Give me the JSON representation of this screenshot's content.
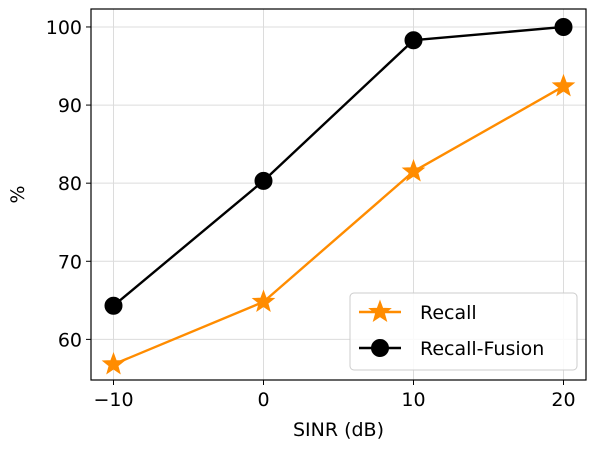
{
  "chart_data": {
    "type": "line",
    "title": "",
    "xlabel": "SINR (dB)",
    "ylabel": "%",
    "x": [
      -10,
      0,
      10,
      20
    ],
    "xticks": [
      -10,
      0,
      10,
      20
    ],
    "xtick_labels": [
      "−10",
      "0",
      "10",
      "20"
    ],
    "yticks": [
      60,
      70,
      80,
      90,
      100
    ],
    "ytick_labels": [
      "60",
      "70",
      "80",
      "90",
      "100"
    ],
    "xlim": [
      -11.5,
      21.5
    ],
    "ylim": [
      54.8,
      102.3
    ],
    "grid": true,
    "legend_position": "lower-right",
    "series": [
      {
        "name": "Recall",
        "values": [
          56.8,
          64.8,
          81.5,
          92.4
        ],
        "color": "#ff8c00",
        "marker": "star"
      },
      {
        "name": "Recall-Fusion",
        "values": [
          64.3,
          80.3,
          98.3,
          100.0
        ],
        "color": "#000000",
        "marker": "circle"
      }
    ]
  }
}
